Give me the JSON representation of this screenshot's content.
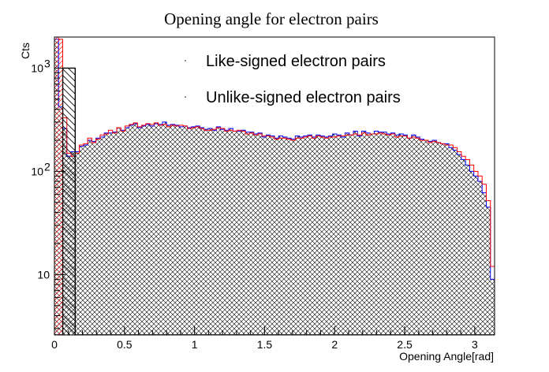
{
  "chart_data": {
    "type": "bar",
    "title": "Opening angle for electron pairs",
    "xlabel": "Opening Angle[rad]",
    "ylabel": "Cts",
    "xlim": [
      0,
      3.1416
    ],
    "ylim": [
      2.6,
      2000
    ],
    "yscale": "log",
    "grid": false,
    "legend_position": "top-center",
    "x_ticks": [
      {
        "value": 0,
        "label": "0"
      },
      {
        "value": 0.5,
        "label": "0.5"
      },
      {
        "value": 1,
        "label": "1"
      },
      {
        "value": 1.5,
        "label": "1.5"
      },
      {
        "value": 2,
        "label": "2"
      },
      {
        "value": 2.5,
        "label": "2.5"
      },
      {
        "value": 3,
        "label": "3"
      }
    ],
    "y_ticks": [
      {
        "value": 10,
        "label": "10"
      },
      {
        "value": 100,
        "label": "10",
        "exponent": "2"
      },
      {
        "value": 1000,
        "label": "10",
        "exponent": "3"
      }
    ],
    "bin_edges": [
      0,
      3.1416
    ],
    "series": [
      {
        "name": "Like-signed electron pairs",
        "color": "#0000ff",
        "values": [
          1900,
          420,
          260,
          140,
          155,
          155,
          175,
          180,
          200,
          195,
          210,
          215,
          235,
          235,
          240,
          265,
          250,
          265,
          280,
          290,
          265,
          275,
          285,
          275,
          290,
          285,
          300,
          280,
          285,
          280,
          270,
          275,
          265,
          270,
          275,
          265,
          255,
          260,
          250,
          270,
          255,
          250,
          260,
          245,
          245,
          250,
          240,
          240,
          230,
          235,
          215,
          225,
          220,
          210,
          220,
          215,
          210,
          205,
          220,
          215,
          220,
          225,
          215,
          225,
          220,
          215,
          220,
          230,
          225,
          215,
          235,
          225,
          245,
          220,
          245,
          235,
          230,
          245,
          240,
          240,
          230,
          235,
          225,
          230,
          225,
          210,
          225,
          215,
          205,
          200,
          195,
          200,
          190,
          185,
          185,
          170,
          160,
          145,
          130,
          115,
          100,
          90,
          80,
          62,
          45,
          9
        ]
      },
      {
        "name": "Unlike-signed electron pairs",
        "color": "#ff0000",
        "values": [
          2000,
          1900,
          330,
          150,
          140,
          150,
          180,
          185,
          210,
          190,
          205,
          225,
          230,
          250,
          235,
          265,
          245,
          275,
          285,
          295,
          270,
          280,
          290,
          285,
          295,
          280,
          285,
          270,
          280,
          275,
          280,
          275,
          260,
          265,
          270,
          260,
          250,
          250,
          255,
          265,
          260,
          245,
          250,
          245,
          250,
          245,
          230,
          235,
          225,
          230,
          220,
          220,
          215,
          205,
          210,
          210,
          205,
          200,
          210,
          210,
          215,
          220,
          210,
          220,
          215,
          210,
          215,
          215,
          220,
          220,
          225,
          225,
          230,
          225,
          235,
          225,
          230,
          230,
          235,
          230,
          225,
          230,
          215,
          220,
          220,
          210,
          215,
          210,
          200,
          200,
          190,
          195,
          190,
          185,
          180,
          180,
          170,
          155,
          140,
          130,
          115,
          100,
          90,
          75,
          52,
          12
        ]
      },
      {
        "name": "",
        "color": "#000000",
        "values": [
          0,
          0,
          1000,
          1000,
          1000,
          0,
          0,
          0,
          0,
          0,
          0,
          0,
          0,
          0,
          0,
          0,
          0,
          0,
          0,
          0,
          0,
          0,
          0,
          0,
          0,
          0,
          0,
          0,
          0,
          0,
          0,
          0,
          0,
          0,
          0,
          0,
          0,
          0,
          0,
          0,
          0,
          0,
          0,
          0,
          0,
          0,
          0,
          0,
          0,
          0,
          0,
          0,
          0,
          0,
          0,
          0,
          0,
          0,
          0,
          0,
          0,
          0,
          0,
          0,
          0,
          0,
          0,
          0,
          0,
          0,
          0,
          0,
          0,
          0,
          0,
          0,
          0,
          0,
          0,
          0,
          0,
          0,
          0,
          0,
          0,
          0,
          0,
          0,
          0,
          0,
          0,
          0,
          0,
          0,
          0,
          0,
          0,
          0,
          0,
          0,
          0,
          0,
          0,
          0,
          0,
          0
        ]
      }
    ]
  }
}
